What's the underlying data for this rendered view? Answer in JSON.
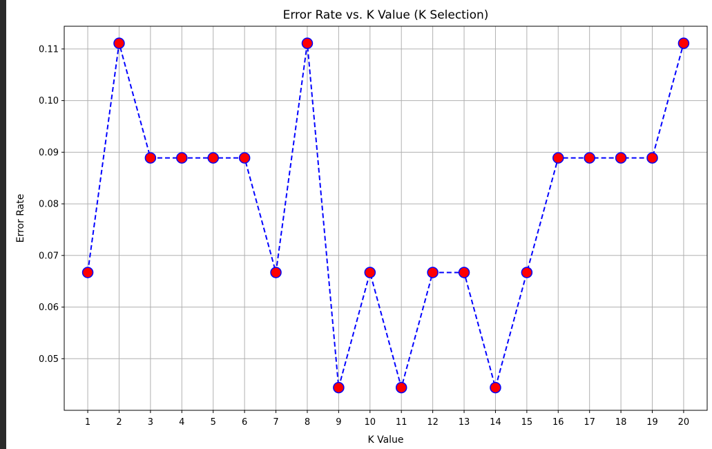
{
  "chart_data": {
    "type": "line",
    "title": "Error Rate vs. K Value (K Selection)",
    "xlabel": "K Value",
    "ylabel": "Error Rate",
    "x": [
      1,
      2,
      3,
      4,
      5,
      6,
      7,
      8,
      9,
      10,
      11,
      12,
      13,
      14,
      15,
      16,
      17,
      18,
      19,
      20
    ],
    "x_tick_labels": [
      "1",
      "2",
      "3",
      "4",
      "5",
      "6",
      "7",
      "8",
      "9",
      "10",
      "11",
      "12",
      "13",
      "14",
      "15",
      "16",
      "17",
      "18",
      "19",
      "20"
    ],
    "y_ticks": [
      0.05,
      0.06,
      0.07,
      0.08,
      0.09,
      0.1,
      0.11
    ],
    "y_tick_labels": [
      "0.05",
      "0.06",
      "0.07",
      "0.08",
      "0.09",
      "0.10",
      "0.11"
    ],
    "xlim": [
      0.25,
      20.75
    ],
    "ylim": [
      0.04,
      0.1144
    ],
    "grid": true,
    "series": [
      {
        "values": [
          0.0667,
          0.1111,
          0.0889,
          0.0889,
          0.0889,
          0.0889,
          0.0667,
          0.1111,
          0.0444,
          0.0667,
          0.0444,
          0.0667,
          0.0667,
          0.0444,
          0.0667,
          0.0889,
          0.0889,
          0.0889,
          0.0889,
          0.1111
        ],
        "line_color": "#0000ff",
        "line_style": "dashed",
        "marker": "circle",
        "marker_face_color": "#ff0000",
        "marker_edge_color": "#0000ff"
      }
    ]
  }
}
